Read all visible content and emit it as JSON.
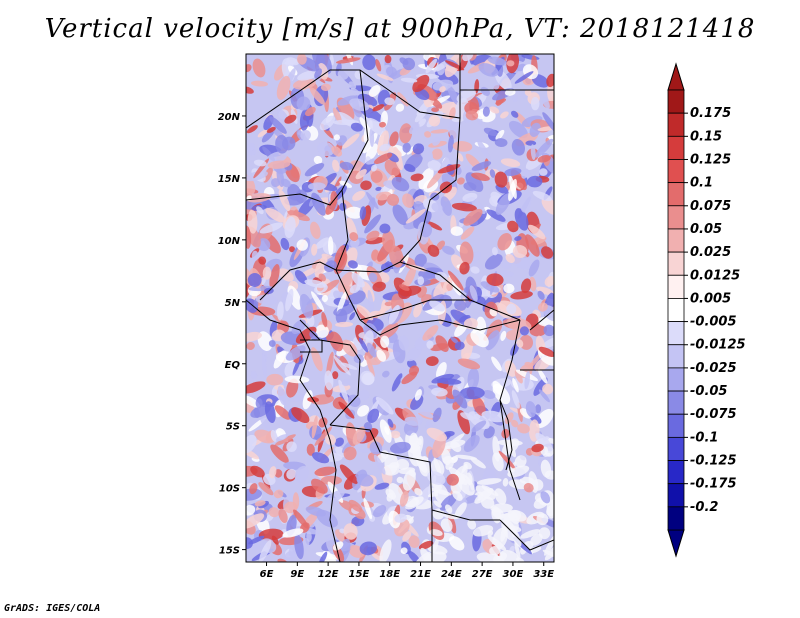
{
  "title": "Vertical velocity [m/s] at 900hPa, VT: 2018121418",
  "footer": "GrADS: IGES/COLA",
  "map": {
    "lon_range": [
      4,
      34
    ],
    "lat_range": [
      -16,
      25
    ],
    "lon_ticks": [
      6,
      9,
      12,
      15,
      18,
      21,
      24,
      27,
      30,
      33
    ],
    "lon_tick_labels": [
      "6E",
      "9E",
      "12E",
      "15E",
      "18E",
      "21E",
      "24E",
      "27E",
      "30E",
      "33E"
    ],
    "lat_ticks": [
      20,
      15,
      10,
      5,
      0,
      -5,
      -10,
      -15
    ],
    "lat_tick_labels": [
      "20N",
      "15N",
      "10N",
      "5N",
      "EQ",
      "5S",
      "10S",
      "15S"
    ]
  },
  "colorbar": {
    "labels": [
      "0.175",
      "0.15",
      "0.125",
      "0.1",
      "0.075",
      "0.05",
      "0.025",
      "0.0125",
      "0.005",
      "-0.005",
      "-0.0125",
      "-0.025",
      "-0.05",
      "-0.075",
      "-0.1",
      "-0.125",
      "-0.175",
      "-0.2"
    ],
    "colors": [
      "#a01818",
      "#c02a2a",
      "#d53c3c",
      "#e05050",
      "#e36c6c",
      "#ea8e8e",
      "#f1b0b0",
      "#f8d4d4",
      "#fff1f1",
      "#ffffff",
      "#dcdcfa",
      "#c4c4f4",
      "#a8a8ee",
      "#8a8ae6",
      "#6a6ae0",
      "#4848d8",
      "#2828c8",
      "#1010aa",
      "#000080"
    ]
  }
}
